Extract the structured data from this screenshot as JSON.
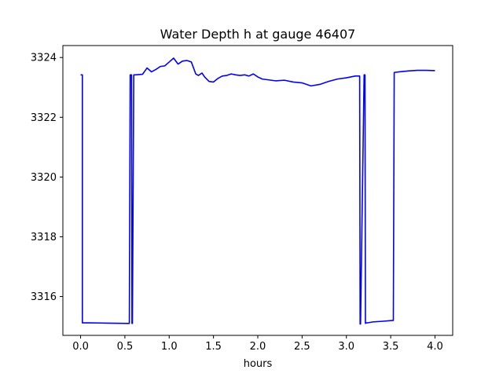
{
  "chart_data": {
    "type": "line",
    "title": "Water Depth h at gauge 46407",
    "xlabel": "hours",
    "ylabel": "",
    "xlim": [
      -0.2,
      4.2
    ],
    "ylim": [
      3314.7,
      3324.4
    ],
    "x_ticks": [
      {
        "value": 0.0,
        "label": "0.0"
      },
      {
        "value": 0.5,
        "label": "0.5"
      },
      {
        "value": 1.0,
        "label": "1.0"
      },
      {
        "value": 1.5,
        "label": "1.5"
      },
      {
        "value": 2.0,
        "label": "2.0"
      },
      {
        "value": 2.5,
        "label": "2.5"
      },
      {
        "value": 3.0,
        "label": "3.0"
      },
      {
        "value": 3.5,
        "label": "3.5"
      },
      {
        "value": 4.0,
        "label": "4.0"
      }
    ],
    "y_ticks": [
      {
        "value": 3316,
        "label": "3316"
      },
      {
        "value": 3318,
        "label": "3318"
      },
      {
        "value": 3320,
        "label": "3320"
      },
      {
        "value": 3322,
        "label": "3322"
      },
      {
        "value": 3324,
        "label": "3324"
      }
    ],
    "grid": false,
    "series": [
      {
        "color": "#0000ff",
        "x": [
          0.0,
          0.02,
          0.02,
          0.1,
          0.3,
          0.54,
          0.55,
          0.56,
          0.575,
          0.58,
          0.585,
          0.6,
          0.62,
          0.7,
          0.75,
          0.8,
          0.85,
          0.9,
          0.95,
          1.0,
          1.05,
          1.1,
          1.15,
          1.2,
          1.25,
          1.3,
          1.33,
          1.37,
          1.4,
          1.45,
          1.5,
          1.55,
          1.6,
          1.65,
          1.7,
          1.75,
          1.8,
          1.85,
          1.9,
          1.95,
          2.0,
          2.05,
          2.1,
          2.2,
          2.3,
          2.4,
          2.5,
          2.6,
          2.7,
          2.8,
          2.9,
          3.0,
          3.1,
          3.15,
          3.155,
          3.16,
          3.2,
          3.21,
          3.215,
          3.22,
          3.24,
          3.3,
          3.4,
          3.53,
          3.54,
          3.6,
          3.7,
          3.8,
          3.9,
          4.0
        ],
        "y": [
          3323.42,
          3323.42,
          3315.12,
          3315.12,
          3315.11,
          3315.1,
          3315.1,
          3323.42,
          3323.42,
          3315.1,
          3315.1,
          3323.42,
          3323.42,
          3323.44,
          3323.65,
          3323.52,
          3323.6,
          3323.7,
          3323.72,
          3323.85,
          3323.98,
          3323.78,
          3323.88,
          3323.9,
          3323.85,
          3323.45,
          3323.4,
          3323.48,
          3323.35,
          3323.2,
          3323.18,
          3323.3,
          3323.38,
          3323.4,
          3323.45,
          3323.42,
          3323.4,
          3323.42,
          3323.38,
          3323.45,
          3323.35,
          3323.28,
          3323.26,
          3323.22,
          3323.24,
          3323.18,
          3323.15,
          3323.05,
          3323.1,
          3323.2,
          3323.28,
          3323.32,
          3323.38,
          3323.38,
          3315.08,
          3315.08,
          3323.42,
          3323.42,
          3315.1,
          3315.12,
          3315.12,
          3315.15,
          3315.17,
          3315.2,
          3323.5,
          3323.52,
          3323.55,
          3323.57,
          3323.57,
          3323.56
        ]
      }
    ]
  }
}
